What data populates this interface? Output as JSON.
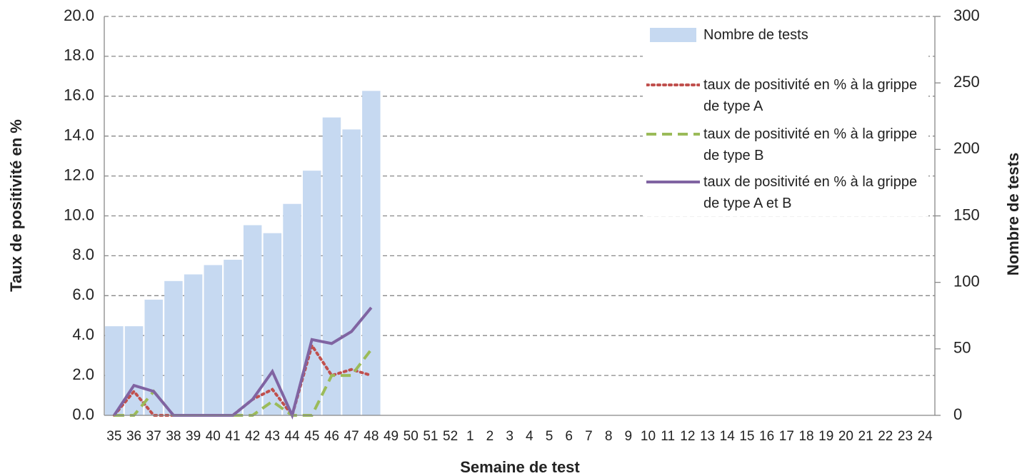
{
  "chart_data": {
    "type": "bar_line",
    "xlabel": "Semaine de test",
    "ylabel": "Taux de positivité en %",
    "y2label": "Nombre de tests",
    "categories": [
      "35",
      "36",
      "37",
      "38",
      "39",
      "40",
      "41",
      "42",
      "43",
      "44",
      "45",
      "46",
      "47",
      "48",
      "49",
      "50",
      "51",
      "52",
      "1",
      "2",
      "3",
      "4",
      "5",
      "6",
      "7",
      "8",
      "9",
      "10",
      "11",
      "12",
      "13",
      "14",
      "15",
      "16",
      "17",
      "18",
      "19",
      "20",
      "21",
      "22",
      "23",
      "24"
    ],
    "series": [
      {
        "name": "Nombre de tests",
        "type": "bar",
        "axis": "y2",
        "color": "#c6d9f1",
        "values": [
          67,
          67,
          87,
          101,
          106,
          113,
          117,
          143,
          137,
          159,
          184,
          224,
          215,
          244,
          null,
          null,
          null,
          null,
          null,
          null,
          null,
          null,
          null,
          null,
          null,
          null,
          null,
          null,
          null,
          null,
          null,
          null,
          null,
          null,
          null,
          null,
          null,
          null,
          null,
          null,
          null,
          null
        ]
      },
      {
        "name": "taux de positivité en % à la grippe de type A",
        "type": "line",
        "style": "dotted",
        "color": "#c0504d",
        "values": [
          0,
          1.2,
          0,
          0,
          0,
          0,
          0,
          0.8,
          1.3,
          0,
          3.5,
          2.0,
          2.3,
          2.0,
          null,
          null,
          null,
          null,
          null,
          null,
          null,
          null,
          null,
          null,
          null,
          null,
          null,
          null,
          null,
          null,
          null,
          null,
          null,
          null,
          null,
          null,
          null,
          null,
          null,
          null,
          null,
          null
        ]
      },
      {
        "name": "taux de positivité en % à la grippe de type B",
        "type": "line",
        "style": "dashed",
        "color": "#9bbb59",
        "values": [
          0,
          0,
          1.2,
          0,
          0,
          0,
          0,
          0,
          0.7,
          0,
          0,
          2.0,
          2.0,
          3.3,
          null,
          null,
          null,
          null,
          null,
          null,
          null,
          null,
          null,
          null,
          null,
          null,
          null,
          null,
          null,
          null,
          null,
          null,
          null,
          null,
          null,
          null,
          null,
          null,
          null,
          null,
          null,
          null
        ]
      },
      {
        "name": "taux de positivité en % à la grippe de type A et B",
        "type": "line",
        "style": "solid",
        "color": "#8064a2",
        "values": [
          0,
          1.5,
          1.2,
          0,
          0,
          0,
          0,
          0.8,
          2.2,
          0,
          3.8,
          3.6,
          4.2,
          5.4,
          null,
          null,
          null,
          null,
          null,
          null,
          null,
          null,
          null,
          null,
          null,
          null,
          null,
          null,
          null,
          null,
          null,
          null,
          null,
          null,
          null,
          null,
          null,
          null,
          null,
          null,
          null,
          null
        ]
      }
    ],
    "ylim": [
      0,
      20
    ],
    "yticks": [
      {
        "value": 0,
        "label": "0.0"
      },
      {
        "value": 2,
        "label": "2.0"
      },
      {
        "value": 4,
        "label": "4.0"
      },
      {
        "value": 6,
        "label": "6.0"
      },
      {
        "value": 8,
        "label": "8.0"
      },
      {
        "value": 10,
        "label": "10.0"
      },
      {
        "value": 12,
        "label": "12.0"
      },
      {
        "value": 14,
        "label": "14.0"
      },
      {
        "value": 16,
        "label": "16.0"
      },
      {
        "value": 18,
        "label": "18.0"
      },
      {
        "value": 20,
        "label": "20.0"
      }
    ],
    "y2lim": [
      0,
      300
    ],
    "y2ticks": [
      0,
      50,
      100,
      150,
      200,
      250,
      300
    ],
    "grid": true,
    "legend": "top-right"
  }
}
